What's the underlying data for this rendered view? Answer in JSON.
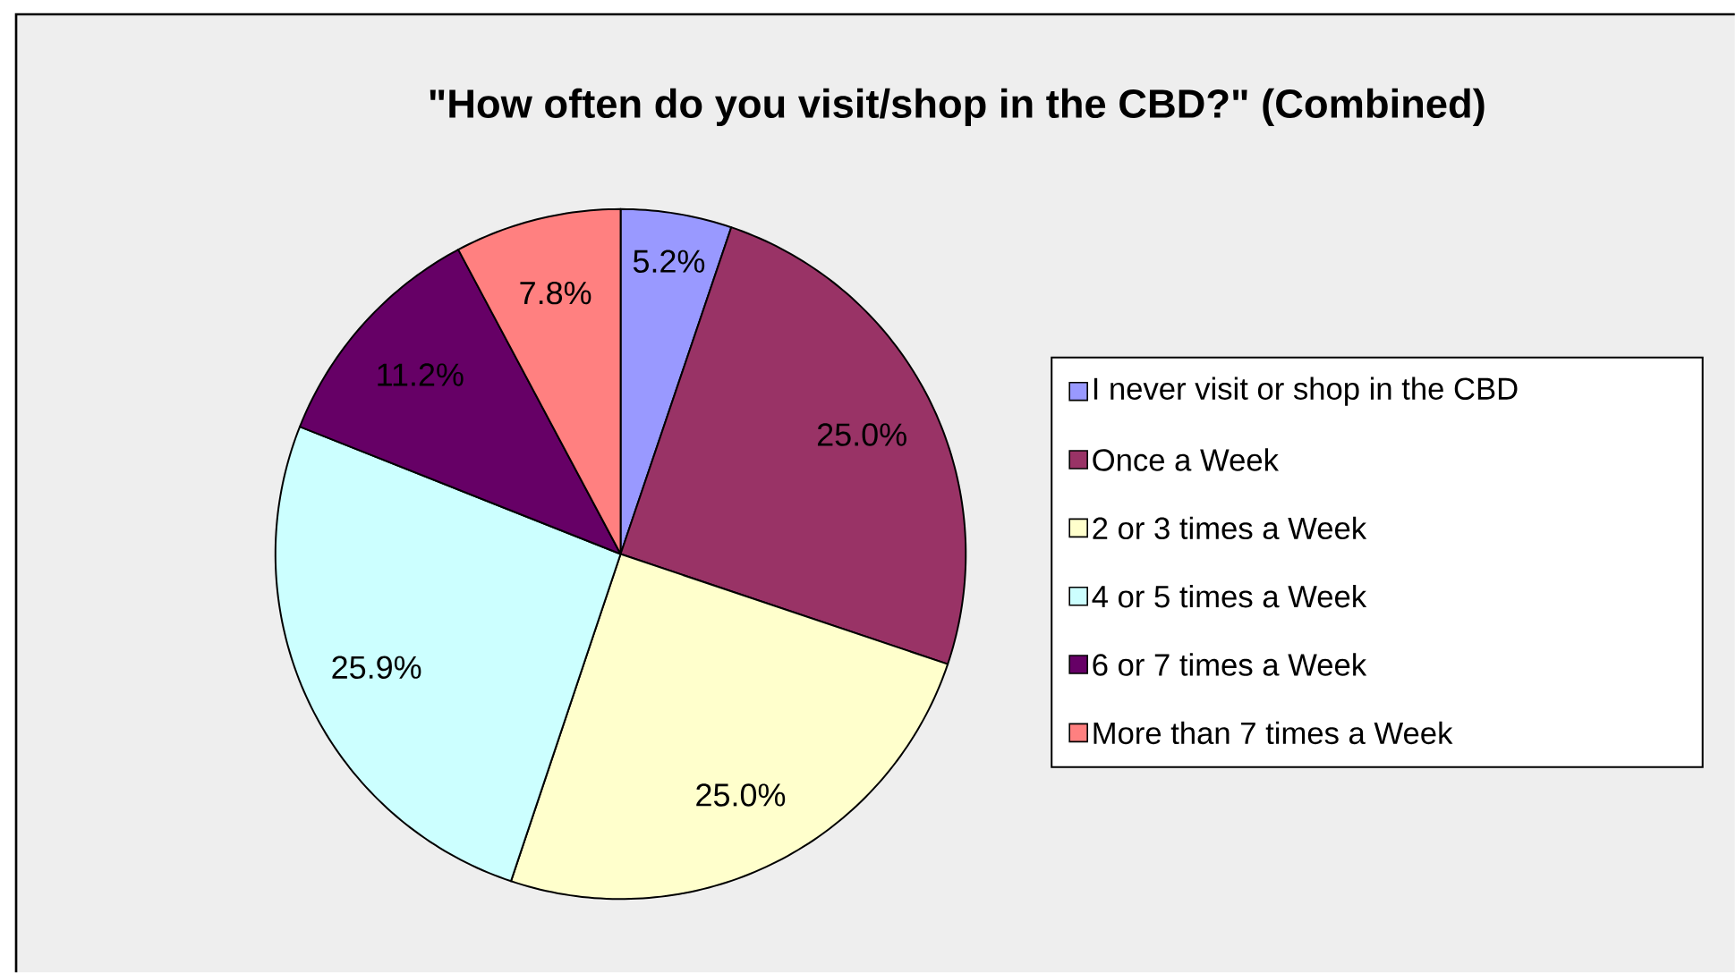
{
  "chart_data": {
    "type": "pie",
    "title": "\"How often do you visit/shop in the CBD?\" (Combined)",
    "categories": [
      "I never visit or shop in the CBD",
      "Once a Week",
      "2 or 3 times a Week",
      "4 or 5 times a Week",
      "6 or 7 times a Week",
      "More than 7 times a Week"
    ],
    "values": [
      5.2,
      25.0,
      25.0,
      25.9,
      11.2,
      7.8
    ],
    "value_labels": [
      "5.2%",
      "25.0%",
      "25.0%",
      "25.9%",
      "11.2%",
      "7.8%"
    ],
    "colors": [
      "#9999ff",
      "#993366",
      "#ffffcc",
      "#ccffff",
      "#660066",
      "#ff8080"
    ],
    "legend": "right"
  }
}
